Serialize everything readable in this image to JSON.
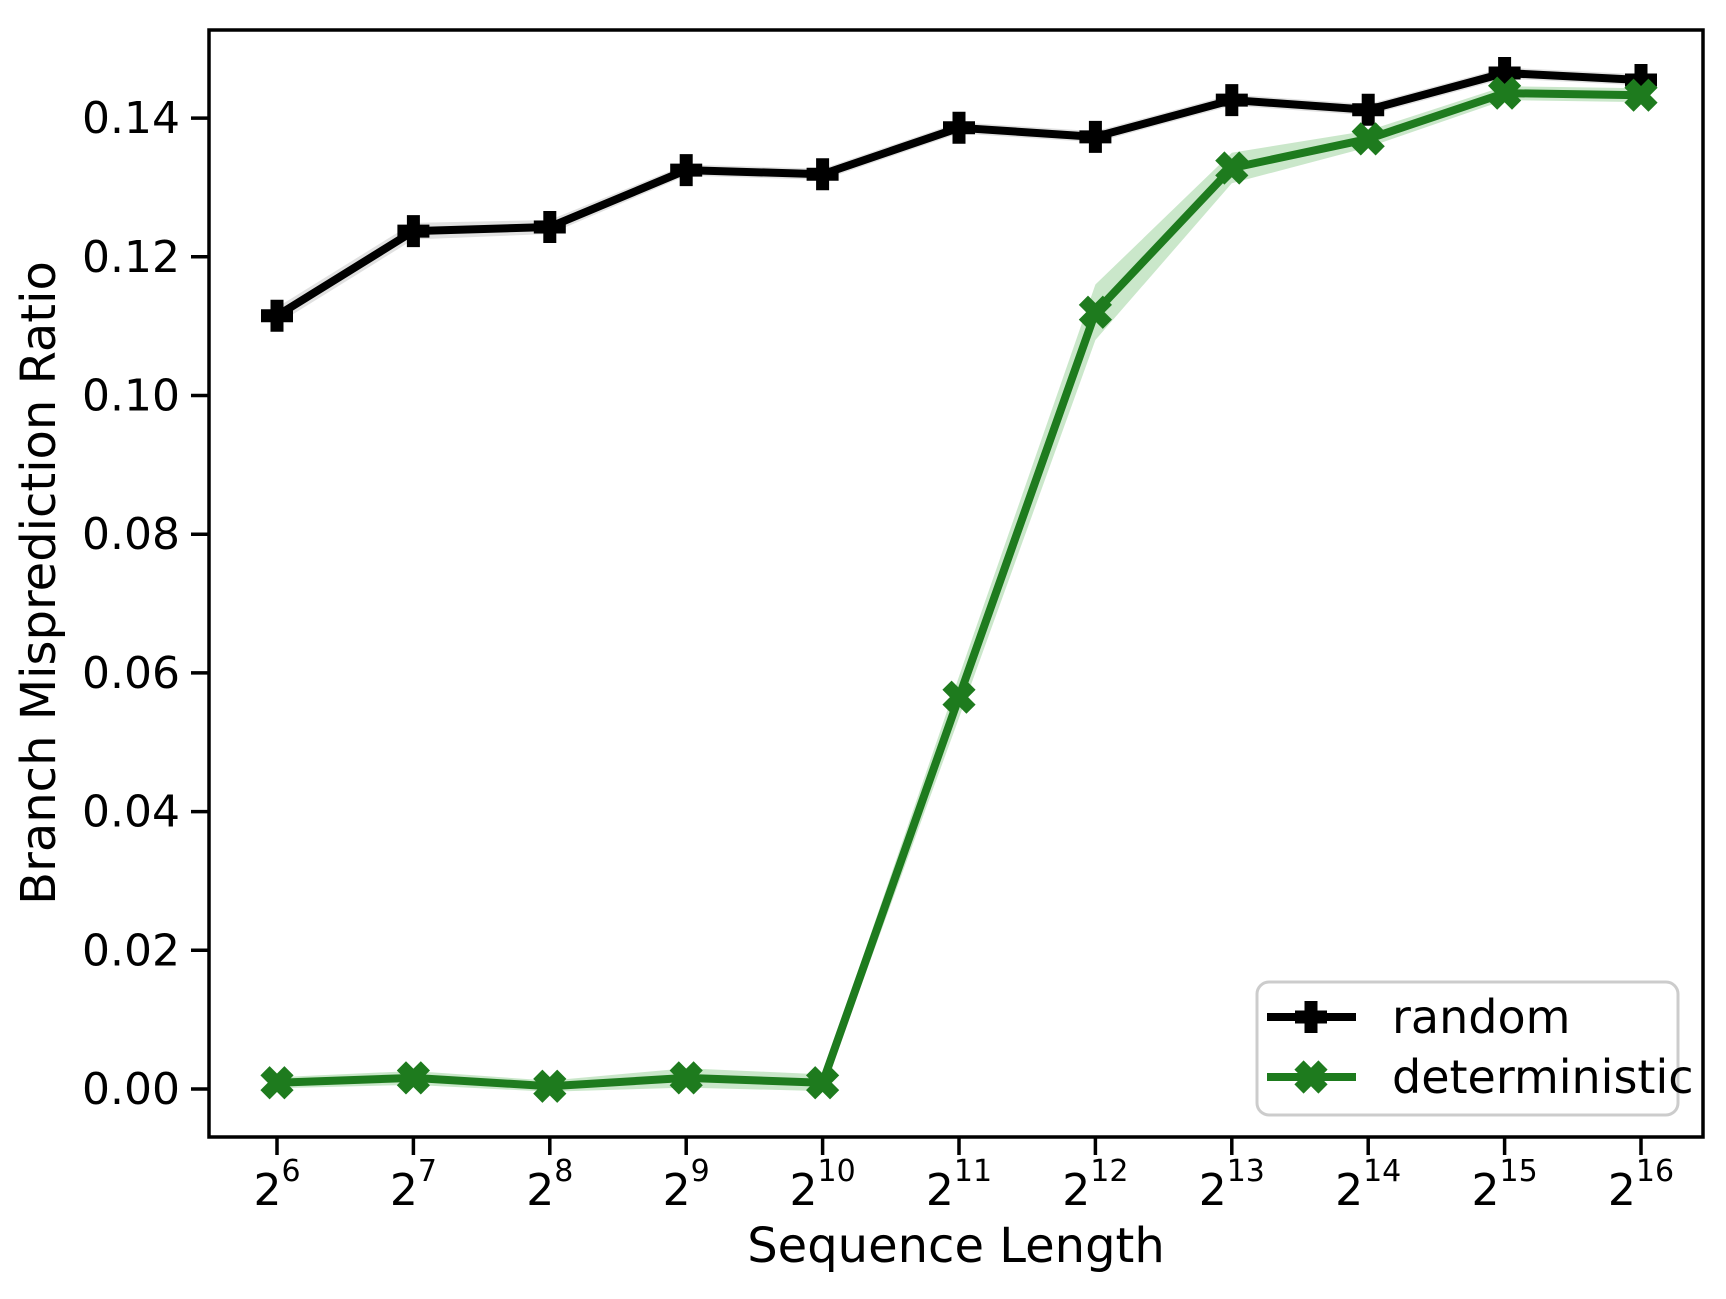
{
  "chart_data": {
    "type": "line",
    "title": "",
    "xlabel": "Sequence Length",
    "ylabel": "Branch Misprediction Ratio",
    "x_tick_base": "2",
    "x_tick_exponents": [
      "6",
      "7",
      "8",
      "9",
      "10",
      "11",
      "12",
      "13",
      "14",
      "15",
      "16"
    ],
    "x_values": [
      64,
      128,
      256,
      512,
      1024,
      2048,
      4096,
      8192,
      16384,
      32768,
      65536
    ],
    "y_tick_labels": [
      "0.00",
      "0.02",
      "0.04",
      "0.06",
      "0.08",
      "0.10",
      "0.12",
      "0.14"
    ],
    "y_tick_values": [
      0.0,
      0.02,
      0.04,
      0.06,
      0.08,
      0.1,
      0.12,
      0.14
    ],
    "ylim": [
      -0.007,
      0.152
    ],
    "grid": false,
    "legend": {
      "position": "lower right",
      "border_color": "#cccccc"
    },
    "series": [
      {
        "name": "random",
        "color": "#000000",
        "band_color": "#aaaaaa",
        "band_opacity": 0.35,
        "marker": "plus",
        "values": [
          0.1115,
          0.1237,
          0.1243,
          0.1325,
          0.1319,
          0.1386,
          0.1373,
          0.1426,
          0.1412,
          0.1465,
          0.1455
        ],
        "band": [
          0.0012,
          0.0012,
          0.001,
          0.0008,
          0.0008,
          0.0008,
          0.0008,
          0.0008,
          0.0008,
          0.0008,
          0.0008
        ]
      },
      {
        "name": "deterministic",
        "color": "#1e7b1e",
        "band_color": "#2ca02c",
        "band_opacity": 0.25,
        "marker": "x",
        "values": [
          0.0009,
          0.0016,
          0.0004,
          0.0016,
          0.0009,
          0.0565,
          0.112,
          0.1328,
          0.137,
          0.1436,
          0.1433
        ],
        "band": [
          0.0008,
          0.001,
          0.0008,
          0.0014,
          0.0012,
          0.003,
          0.004,
          0.0022,
          0.0012,
          0.001,
          0.001
        ]
      }
    ]
  }
}
